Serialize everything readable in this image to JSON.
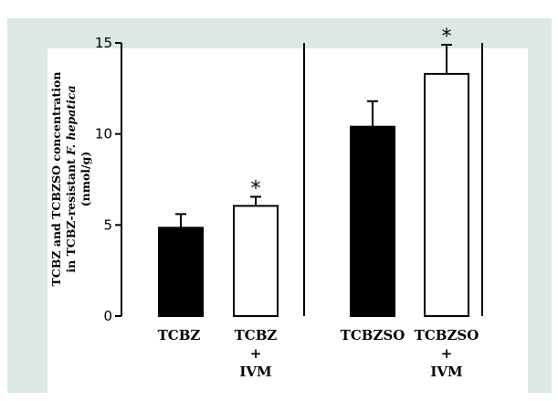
{
  "chart_data": {
    "type": "bar",
    "ylabel_lines": [
      "TCBZ and TCBZSO concentration",
      "in TCBZ-resistant F. hepatica",
      "(nmol/g)"
    ],
    "ylim": [
      0,
      15
    ],
    "yticks": [
      "0",
      "5",
      "10",
      "15"
    ],
    "yticks_values": [
      0,
      5,
      10,
      15
    ],
    "categories": [
      {
        "lines": [
          "TCBZ"
        ]
      },
      {
        "lines": [
          "TCBZ",
          "+",
          "IVM"
        ]
      },
      {
        "lines": [
          "TCBZSO"
        ]
      },
      {
        "lines": [
          "TCBZSO",
          "+",
          "IVM"
        ]
      }
    ],
    "values": [
      4.85,
      6.05,
      10.4,
      13.3
    ],
    "errors": [
      0.75,
      0.5,
      1.4,
      1.6
    ],
    "fills": [
      "#000000",
      "#ffffff",
      "#000000",
      "#ffffff"
    ],
    "significance": [
      "",
      "*",
      "",
      "*"
    ],
    "panel_divider_between": [
      1,
      2
    ]
  }
}
